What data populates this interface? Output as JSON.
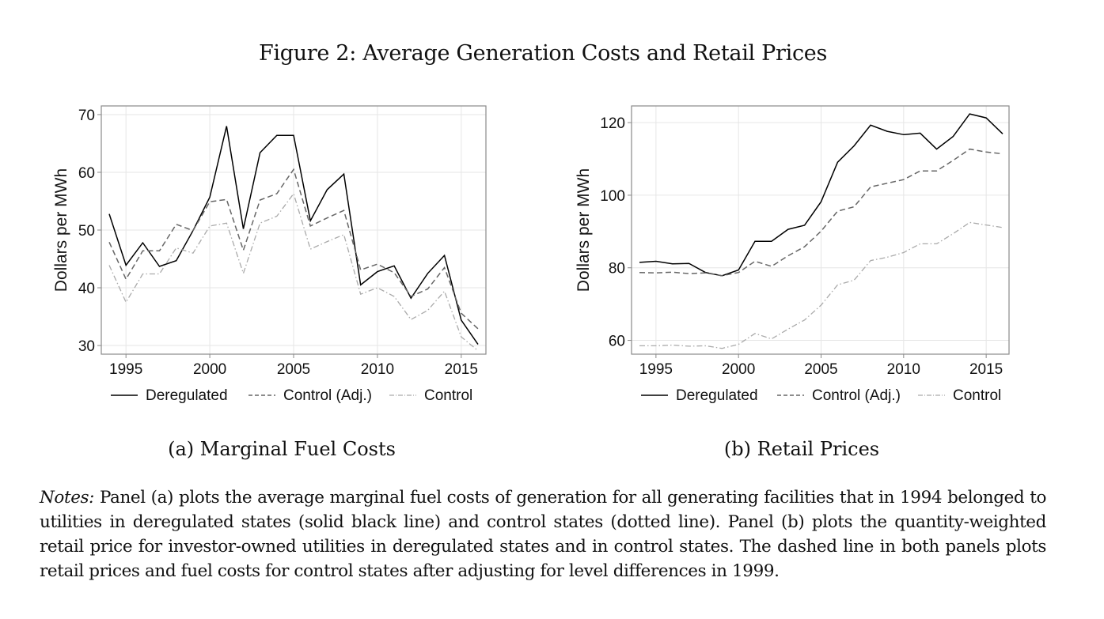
{
  "figure": {
    "title": "Figure 2: Average Generation Costs and Retail Prices",
    "notes_label": "Notes:",
    "notes_text": " Panel (a) plots the average marginal fuel costs of generation for all generating facilities that in 1994 belonged to utilities in deregulated states (solid black line) and control states (dotted line).  Panel (b) plots the quantity-weighted retail price for investor-owned utilities in deregulated states and in control states. The dashed line in both panels plots retail prices and fuel costs for control states after adjusting for level differences in 1999."
  },
  "chart_data": [
    {
      "type": "line",
      "title": "(a) Marginal Fuel Costs",
      "xlabel": "",
      "ylabel": "Dollars per MWh",
      "xlim": [
        1994,
        2016
      ],
      "ylim": [
        28.5,
        71.5
      ],
      "xticks": [
        1995,
        2000,
        2005,
        2010,
        2015
      ],
      "yticks": [
        30,
        40,
        50,
        60,
        70
      ],
      "grid": true,
      "legend": "bottom",
      "x": [
        1994,
        1995,
        1996,
        1997,
        1998,
        1999,
        2000,
        2001,
        2002,
        2003,
        2004,
        2005,
        2006,
        2007,
        2008,
        2009,
        2010,
        2011,
        2012,
        2013,
        2014,
        2015,
        2016
      ],
      "series": [
        {
          "name": "Deregulated",
          "style": "solid",
          "color": "#000000",
          "values": [
            52.8,
            43.9,
            47.8,
            43.7,
            44.7,
            49.9,
            55.7,
            68.0,
            50.2,
            63.4,
            66.4,
            66.4,
            51.6,
            57.0,
            59.7,
            40.5,
            42.8,
            43.8,
            38.2,
            42.5,
            45.6,
            34.4,
            30.2
          ]
        },
        {
          "name": "Control (Adj.)",
          "style": "dashed",
          "color": "#666666",
          "values": [
            47.9,
            41.5,
            46.4,
            46.4,
            51.0,
            49.9,
            54.9,
            55.3,
            46.5,
            55.2,
            56.3,
            60.5,
            50.7,
            52.1,
            53.4,
            43.1,
            44.1,
            42.6,
            38.5,
            39.8,
            43.5,
            35.6,
            32.9
          ]
        },
        {
          "name": "Control",
          "style": "dashdot",
          "color": "#aaaaaa",
          "values": [
            43.9,
            37.5,
            42.4,
            42.4,
            46.9,
            46.0,
            50.7,
            51.2,
            42.5,
            51.2,
            52.4,
            56.3,
            46.7,
            48.0,
            49.2,
            38.9,
            40.0,
            38.5,
            34.5,
            36.1,
            39.4,
            31.5,
            29.1
          ]
        }
      ]
    },
    {
      "type": "line",
      "title": "(b) Retail Prices",
      "xlabel": "",
      "ylabel": "Dollars per MWh",
      "xlim": [
        1994,
        2016
      ],
      "ylim": [
        56.2,
        124.6
      ],
      "xticks": [
        1995,
        2000,
        2005,
        2010,
        2015
      ],
      "yticks": [
        60,
        80,
        100,
        120
      ],
      "grid": true,
      "legend": "bottom",
      "x": [
        1994,
        1995,
        1996,
        1997,
        1998,
        1999,
        2000,
        2001,
        2002,
        2003,
        2004,
        2005,
        2006,
        2007,
        2008,
        2009,
        2010,
        2011,
        2012,
        2013,
        2014,
        2015,
        2016
      ],
      "series": [
        {
          "name": "Deregulated",
          "style": "solid",
          "color": "#000000",
          "values": [
            81.5,
            81.8,
            81.1,
            81.2,
            78.7,
            77.8,
            79.4,
            87.3,
            87.3,
            90.6,
            91.7,
            98.2,
            109.1,
            113.6,
            119.3,
            117.6,
            116.7,
            117.1,
            112.7,
            116.2,
            122.4,
            121.3,
            116.9
          ]
        },
        {
          "name": "Control (Adj.)",
          "style": "dashed",
          "color": "#666666",
          "values": [
            78.7,
            78.6,
            78.8,
            78.4,
            78.6,
            77.8,
            78.7,
            81.8,
            80.4,
            83.3,
            85.8,
            90.1,
            95.6,
            96.8,
            102.3,
            103.3,
            104.3,
            106.7,
            106.7,
            109.6,
            112.7,
            111.9,
            111.4
          ]
        },
        {
          "name": "Control",
          "style": "dashdot",
          "color": "#aaaaaa",
          "values": [
            58.5,
            58.5,
            58.7,
            58.4,
            58.5,
            57.8,
            58.9,
            61.9,
            60.4,
            63.1,
            65.6,
            69.7,
            75.3,
            76.6,
            82.0,
            82.9,
            84.2,
            86.6,
            86.6,
            89.4,
            92.5,
            91.8,
            91.1
          ]
        }
      ]
    }
  ]
}
